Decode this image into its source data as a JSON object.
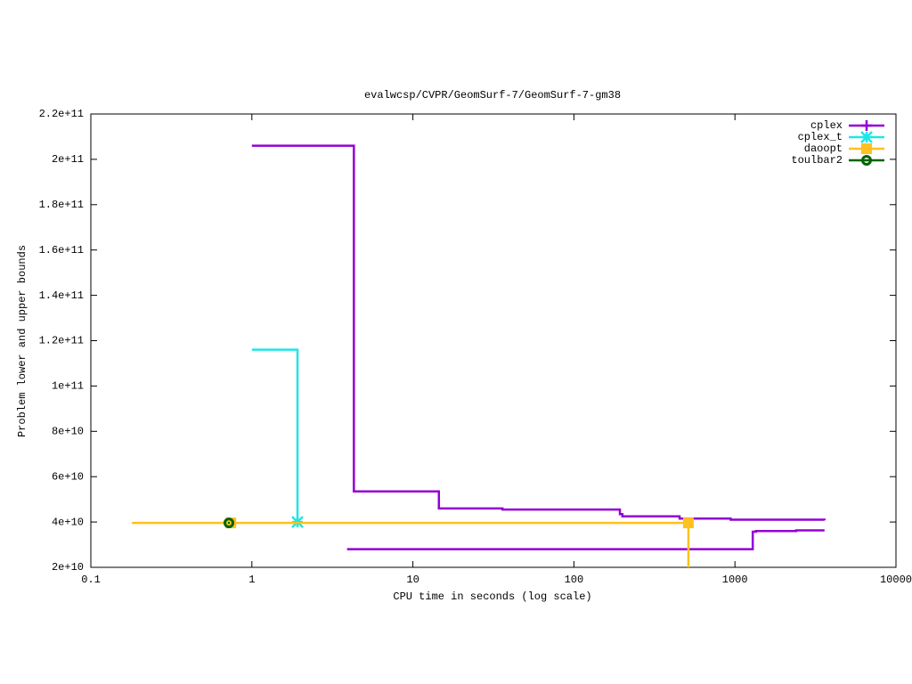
{
  "chart_data": {
    "type": "step",
    "title": "evalwcsp/CVPR/GeomSurf-7/GeomSurf-7-gm38",
    "x_label": "CPU time in seconds (log scale)",
    "y_label": "Problem lower and upper bounds",
    "x_log": true,
    "xlim": [
      0.1,
      10000
    ],
    "xticks": [
      0.1,
      1,
      10,
      100,
      1000,
      10000
    ],
    "ylim": [
      20000000000,
      220000000000
    ],
    "yticks": [
      {
        "value": 20000000000,
        "label": "2e+10"
      },
      {
        "value": 40000000000,
        "label": "4e+10"
      },
      {
        "value": 60000000000,
        "label": "6e+10"
      },
      {
        "value": 80000000000,
        "label": "8e+10"
      },
      {
        "value": 100000000000,
        "label": "1e+11"
      },
      {
        "value": 120000000000,
        "label": "1.2e+11"
      },
      {
        "value": 140000000000,
        "label": "1.4e+11"
      },
      {
        "value": 160000000000,
        "label": "1.6e+11"
      },
      {
        "value": 180000000000,
        "label": "1.8e+11"
      },
      {
        "value": 200000000000,
        "label": "2e+11"
      },
      {
        "value": 220000000000,
        "label": "2.2e+11"
      }
    ],
    "legend": "top-right",
    "series": [
      {
        "name": "cplex",
        "color": "#9400d3",
        "marker": "plus",
        "x": [
          1,
          4.3,
          14.5,
          36,
          193,
          200,
          453,
          940,
          3600,
          null,
          3.9,
          1290,
          1350,
          2400,
          3600
        ],
        "values": [
          206000000000,
          53500000000,
          46000000000,
          45500000000,
          43500000000,
          42500000000,
          41500000000,
          41000000000,
          40800000000,
          null,
          28000000000,
          35700000000,
          36000000000,
          36300000000,
          36300000000
        ],
        "points_x": [],
        "points_y": []
      },
      {
        "name": "cplex_t",
        "color": "#1ee6e6",
        "marker": "star",
        "x": [
          1,
          1.92
        ],
        "values": [
          116000000000,
          40000000000
        ],
        "points_x": [
          1.92
        ],
        "points_y": [
          40000000000
        ]
      },
      {
        "name": "daoopt",
        "color": "#ffc020",
        "marker": "square",
        "x": [
          0.18,
          514,
          514
        ],
        "values": [
          39600000000,
          39600000000,
          20000000000
        ],
        "points_x": [
          0.74,
          514
        ],
        "points_y": [
          39600000000,
          39600000000
        ]
      },
      {
        "name": "toulbar2",
        "color": "#006400",
        "marker": "circle",
        "x": [],
        "values": [],
        "points_x": [
          0.72
        ],
        "points_y": [
          39600000000
        ]
      }
    ]
  }
}
